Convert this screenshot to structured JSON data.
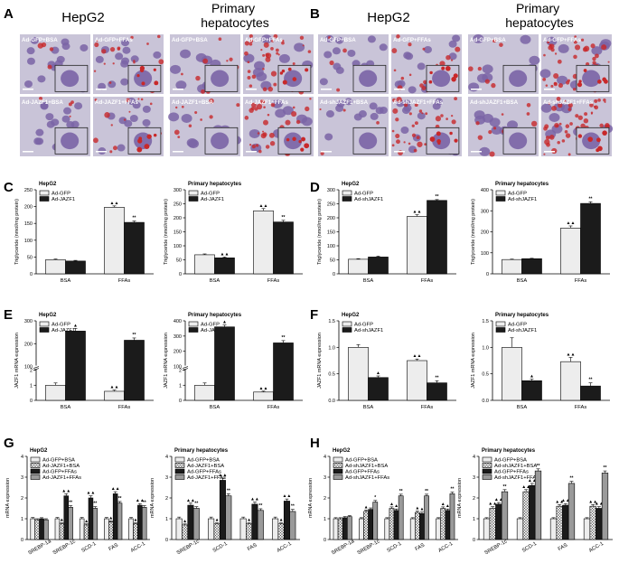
{
  "figure": {
    "panel_letters": [
      "A",
      "B",
      "C",
      "D",
      "E",
      "F",
      "G",
      "H"
    ],
    "micrograph_headers": {
      "A": [
        "HepG2",
        "Primary hepatocytes"
      ],
      "B": [
        "HepG2",
        "Primary hepatocytes"
      ]
    },
    "micrograph_labels": {
      "A": [
        [
          "Ad-GFP+BSA",
          "Ad-GFP+FFAs",
          "Ad-GFP+BSA",
          "Ad-GFP+FFAs"
        ],
        [
          "Ad-JAZF1+BSA",
          "Ad-JAZF1+FFAs",
          "Ad-JAZF1+BSA",
          "Ad-JAZF1+FFAs"
        ]
      ],
      "B": [
        [
          "Ad-GFP+BSA",
          "Ad-GFP+FFAs",
          "Ad-GFP+BSA",
          "Ad-GFP+FFAs"
        ],
        [
          "Ad-shJAZF1+BSA",
          "Ad-shJAZF1+FFAs",
          "Ad-shJAZF1+BSA",
          "Ad-shJAZF1+FFAs"
        ]
      ]
    },
    "colors": {
      "stain_background": "#c9c4d8",
      "nucleus": "#7a64a6",
      "lipid": "#c8282a",
      "label_text": "#ffffff",
      "bar_light": "#ededed",
      "bar_dark": "#1b1b1b",
      "bar_grey": "#9a9a9a"
    }
  },
  "chart_data": [
    {
      "id": "C1",
      "panel": "C",
      "type": "bar",
      "title": "HepG2",
      "ylabel": "Triglyceride (nmol/mg protein)",
      "categories": [
        "BSA",
        "FFAs"
      ],
      "ylim": [
        0,
        250
      ],
      "yticks": [
        0,
        50,
        100,
        150,
        200,
        250
      ],
      "series": [
        {
          "name": "Ad-GFP",
          "values": [
            42,
            198
          ],
          "errors": [
            2,
            4
          ]
        },
        {
          "name": "Ad-JAZF1",
          "values": [
            38,
            153
          ],
          "errors": [
            2,
            4
          ]
        }
      ],
      "annotations": [
        [
          "",
          ""
        ],
        [
          "▲▲",
          "**"
        ]
      ]
    },
    {
      "id": "C2",
      "panel": "C",
      "type": "bar",
      "title": "Primary hepatocytes",
      "ylabel": "Triglyceride (nmol/mg protein)",
      "categories": [
        "BSA",
        "FFAs"
      ],
      "ylim": [
        0,
        300
      ],
      "yticks": [
        0,
        50,
        100,
        150,
        200,
        250,
        300
      ],
      "series": [
        {
          "name": "Ad-GFP",
          "values": [
            68,
            225
          ],
          "errors": [
            3,
            8
          ]
        },
        {
          "name": "Ad-JAZF1",
          "values": [
            57,
            185
          ],
          "errors": [
            3,
            6
          ]
        }
      ],
      "annotations": [
        [
          "",
          "▲▲"
        ],
        [
          "▲▲",
          "**"
        ]
      ]
    },
    {
      "id": "D1",
      "panel": "D",
      "type": "bar",
      "title": "HepG2",
      "ylabel": "Triglyceride (nmol/mg protein)",
      "categories": [
        "BSA",
        "FFAs"
      ],
      "ylim": [
        0,
        300
      ],
      "yticks": [
        0,
        50,
        100,
        150,
        200,
        250,
        300
      ],
      "series": [
        {
          "name": "Ad-GFP",
          "values": [
            52,
            205
          ],
          "errors": [
            2,
            6
          ]
        },
        {
          "name": "Ad-shJAZF1",
          "values": [
            60,
            262
          ],
          "errors": [
            3,
            3
          ]
        }
      ],
      "annotations": [
        [
          "",
          ""
        ],
        [
          "▲▲",
          "**"
        ]
      ]
    },
    {
      "id": "D2",
      "panel": "D",
      "type": "bar",
      "title": "Primary hepatocytes",
      "ylabel": "Triglyceride (nmol/mg protein)",
      "categories": [
        "BSA",
        "FFAs"
      ],
      "ylim": [
        0,
        400
      ],
      "yticks": [
        0,
        100,
        200,
        300,
        400
      ],
      "series": [
        {
          "name": "Ad-GFP",
          "values": [
            68,
            218
          ],
          "errors": [
            2,
            10
          ]
        },
        {
          "name": "Ad-shJAZF1",
          "values": [
            72,
            335
          ],
          "errors": [
            2,
            8
          ]
        }
      ],
      "annotations": [
        [
          "",
          ""
        ],
        [
          "▲▲",
          "**"
        ]
      ]
    },
    {
      "id": "E1",
      "panel": "E",
      "type": "bar",
      "title": "HepG2",
      "ylabel": "JAZF1 mRNA expression",
      "categories": [
        "BSA",
        "FFAs"
      ],
      "ylim": [
        0,
        300
      ],
      "yticks": [
        0,
        1,
        2,
        100,
        200,
        300
      ],
      "axis_break": [
        2,
        100
      ],
      "series": [
        {
          "name": "Ad-GFP",
          "values": [
            1,
            0.6
          ],
          "errors": [
            0.15,
            0.08
          ]
        },
        {
          "name": "Ad-JAZF1",
          "values": [
            255,
            215
          ],
          "errors": [
            12,
            10
          ]
        }
      ],
      "annotations": [
        [
          "",
          "▲"
        ],
        [
          "▲▲",
          "**"
        ]
      ]
    },
    {
      "id": "E2",
      "panel": "E",
      "type": "bar",
      "title": "Primary hepatocytes",
      "ylabel": "JAZF1 mRNA expression",
      "categories": [
        "BSA",
        "FFAs"
      ],
      "ylim": [
        0,
        400
      ],
      "yticks": [
        0,
        1,
        2,
        100,
        200,
        300,
        400
      ],
      "axis_break": [
        2,
        100
      ],
      "series": [
        {
          "name": "Ad-GFP",
          "values": [
            1,
            0.55
          ],
          "errors": [
            0.15,
            0.06
          ]
        },
        {
          "name": "Ad-JAZF1",
          "values": [
            360,
            255
          ],
          "errors": [
            12,
            15
          ]
        }
      ],
      "annotations": [
        [
          "",
          "▲"
        ],
        [
          "▲▲",
          "**"
        ]
      ]
    },
    {
      "id": "F1",
      "panel": "F",
      "type": "bar",
      "title": "HepG2",
      "ylabel": "JAZF1 mRNA expression",
      "categories": [
        "BSA",
        "FFAs"
      ],
      "ylim": [
        0,
        1.5
      ],
      "yticks": [
        0.0,
        0.5,
        1.0,
        1.5
      ],
      "tickdec": 1,
      "series": [
        {
          "name": "Ad-GFP",
          "values": [
            1.0,
            0.75
          ],
          "errors": [
            0.05,
            0.03
          ]
        },
        {
          "name": "Ad-shJAZF1",
          "values": [
            0.43,
            0.33
          ],
          "errors": [
            0.03,
            0.04
          ]
        }
      ],
      "annotations": [
        [
          "",
          "▲"
        ],
        [
          "▲▲",
          "**"
        ]
      ]
    },
    {
      "id": "F2",
      "panel": "F",
      "type": "bar",
      "title": "Primary hepatocytes",
      "ylabel": "JAZF1 mRNA expression",
      "categories": [
        "BSA",
        "FFAs"
      ],
      "ylim": [
        0,
        1.5
      ],
      "yticks": [
        0.0,
        0.5,
        1.0,
        1.5
      ],
      "tickdec": 1,
      "series": [
        {
          "name": "Ad-GFP",
          "values": [
            1.0,
            0.73
          ],
          "errors": [
            0.18,
            0.08
          ]
        },
        {
          "name": "Ad-shJAZF1",
          "values": [
            0.37,
            0.27
          ],
          "errors": [
            0.03,
            0.06
          ]
        }
      ],
      "annotations": [
        [
          "",
          "▲"
        ],
        [
          "▲▲",
          "**"
        ]
      ]
    },
    {
      "id": "G1",
      "panel": "G",
      "type": "bar",
      "title": "HepG2",
      "ylabel": "mRNA expression",
      "categories": [
        "SREBP-1a",
        "SREBP-1c",
        "SCD-1",
        "FAS",
        "ACC-1"
      ],
      "ylim": [
        0,
        4
      ],
      "yticks": [
        0,
        1,
        2,
        3,
        4
      ],
      "series": [
        {
          "name": "Ad-GFP+BSA",
          "values": [
            1.0,
            1.0,
            1.0,
            1.0,
            1.0
          ],
          "errors": [
            0.06,
            0.06,
            0.06,
            0.06,
            0.06
          ]
        },
        {
          "name": "Ad-JAZF1+BSA",
          "values": [
            0.95,
            0.75,
            0.7,
            0.85,
            0.75
          ],
          "errors": [
            0.05,
            0.05,
            0.05,
            0.05,
            0.05
          ]
        },
        {
          "name": "Ad-GFP+FFAs",
          "values": [
            1.0,
            2.1,
            2.0,
            2.2,
            1.65
          ],
          "errors": [
            0.05,
            0.1,
            0.1,
            0.1,
            0.08
          ]
        },
        {
          "name": "Ad-JAZF1+FFAs",
          "values": [
            0.95,
            1.55,
            1.5,
            1.75,
            1.55
          ],
          "errors": [
            0.05,
            0.08,
            0.08,
            0.08,
            0.08
          ]
        }
      ],
      "annotations": [
        [
          "",
          "",
          "",
          ""
        ],
        [
          "",
          "▲",
          "▲▲",
          "**"
        ],
        [
          "",
          "▲",
          "▲▲",
          "**"
        ],
        [
          "",
          "▲",
          "▲▲",
          "**"
        ],
        [
          "",
          "▲",
          "▲▲",
          "**"
        ]
      ]
    },
    {
      "id": "G2",
      "panel": "G",
      "type": "bar",
      "title": "Primary hepatocytes",
      "ylabel": "mRNA expression",
      "categories": [
        "SREBP-1c",
        "SCD-1",
        "FAS",
        "ACC-1"
      ],
      "ylim": [
        0,
        4
      ],
      "yticks": [
        0,
        1,
        2,
        3,
        4
      ],
      "series": [
        {
          "name": "Ad-GFP+BSA",
          "values": [
            1.0,
            1.0,
            1.0,
            1.0
          ],
          "errors": [
            0.08,
            0.08,
            0.08,
            0.08
          ]
        },
        {
          "name": "Ad-JAZF1+BSA",
          "values": [
            0.7,
            0.75,
            0.75,
            0.75
          ],
          "errors": [
            0.05,
            0.05,
            0.05,
            0.05
          ]
        },
        {
          "name": "Ad-GFP+FFAs",
          "values": [
            1.65,
            2.85,
            1.7,
            1.85
          ],
          "errors": [
            0.1,
            0.1,
            0.1,
            0.1
          ]
        },
        {
          "name": "Ad-JAZF1+FFAs",
          "values": [
            1.5,
            2.1,
            1.4,
            1.35
          ],
          "errors": [
            0.08,
            0.1,
            0.08,
            0.1
          ]
        }
      ],
      "annotations": [
        [
          "",
          "▲",
          "▲▲",
          "**"
        ],
        [
          "",
          "▲",
          "▲▲",
          "**"
        ],
        [
          "",
          "▲",
          "▲▲",
          "**"
        ],
        [
          "",
          "▲",
          "▲▲",
          "**"
        ]
      ]
    },
    {
      "id": "H1",
      "panel": "H",
      "type": "bar",
      "title": "HepG2",
      "ylabel": "mRNA expression",
      "categories": [
        "SREBP-1a",
        "SREBP-1c",
        "SCD-1",
        "FAS",
        "ACC-1"
      ],
      "ylim": [
        0,
        4
      ],
      "yticks": [
        0,
        1,
        2,
        3,
        4
      ],
      "series": [
        {
          "name": "Ad-GFP+BSA",
          "values": [
            1.0,
            1.0,
            1.0,
            1.0,
            1.0
          ],
          "errors": [
            0.05,
            0.05,
            0.05,
            0.05,
            0.05
          ]
        },
        {
          "name": "Ad-shJAZF1+BSA",
          "values": [
            1.0,
            1.35,
            1.5,
            1.3,
            1.5
          ],
          "errors": [
            0.05,
            0.07,
            0.07,
            0.07,
            0.07
          ]
        },
        {
          "name": "Ad-GFP+FFAs",
          "values": [
            1.05,
            1.45,
            1.4,
            1.25,
            1.4
          ],
          "errors": [
            0.05,
            0.07,
            0.07,
            0.07,
            0.07
          ]
        },
        {
          "name": "Ad-shJAZF1+FFAs",
          "values": [
            1.1,
            1.8,
            2.1,
            2.1,
            2.2
          ],
          "errors": [
            0.05,
            0.08,
            0.08,
            0.08,
            0.08
          ]
        }
      ],
      "annotations": [
        [
          "",
          "",
          "",
          ""
        ],
        [
          "",
          "▲",
          "",
          "*"
        ],
        [
          "",
          "▲",
          "▲",
          "**"
        ],
        [
          "",
          "▲",
          "▲",
          "**"
        ],
        [
          "",
          "▲",
          "▲",
          "**"
        ]
      ]
    },
    {
      "id": "H2",
      "panel": "H",
      "type": "bar",
      "title": "Primary hepatocytes",
      "ylabel": "mRNA expression",
      "categories": [
        "SREBP-1c",
        "SCD-1",
        "FAS",
        "ACC-1"
      ],
      "ylim": [
        0,
        4
      ],
      "yticks": [
        0,
        1,
        2,
        3,
        4
      ],
      "series": [
        {
          "name": "Ad-GFP+BSA",
          "values": [
            1.0,
            1.0,
            1.0,
            1.0
          ],
          "errors": [
            0.05,
            0.05,
            0.05,
            0.05
          ]
        },
        {
          "name": "Ad-shJAZF1+BSA",
          "values": [
            1.5,
            2.3,
            1.6,
            1.6
          ],
          "errors": [
            0.08,
            0.1,
            0.08,
            0.08
          ]
        },
        {
          "name": "Ad-GFP+FFAs",
          "values": [
            1.7,
            2.6,
            1.65,
            1.5
          ],
          "errors": [
            0.08,
            0.1,
            0.08,
            0.08
          ]
        },
        {
          "name": "Ad-shJAZF1+FFAs",
          "values": [
            2.3,
            3.3,
            2.7,
            3.2
          ],
          "errors": [
            0.1,
            0.1,
            0.1,
            0.1
          ]
        }
      ],
      "annotations": [
        [
          "",
          "▲▲",
          "▲▲",
          "**"
        ],
        [
          "",
          "▲▲",
          "▲▲",
          "**"
        ],
        [
          "",
          "▲▲",
          "▲▲",
          "**"
        ],
        [
          "",
          "▲▲",
          "▲▲",
          "**"
        ]
      ]
    }
  ]
}
